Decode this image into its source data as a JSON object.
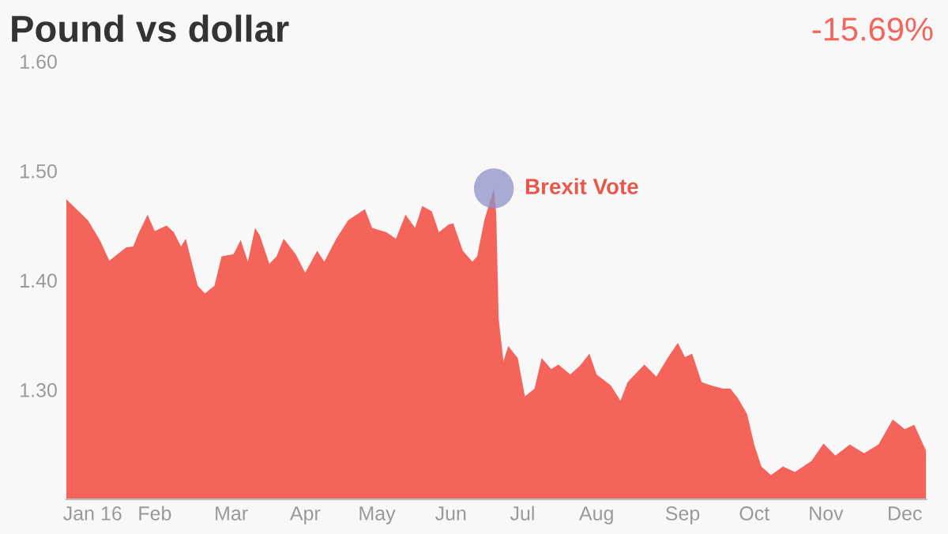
{
  "chart_data": {
    "type": "area",
    "title": "Pound vs dollar",
    "annotations": [
      "-15.69%",
      {
        "text": "Brexit Vote",
        "x": "2016-06-28",
        "y": 1.484
      }
    ],
    "x": [
      "2016-01-01",
      "2016-01-10",
      "2016-01-15",
      "2016-01-19",
      "2016-01-26",
      "2016-01-29",
      "2016-01-31",
      "2016-02-04",
      "2016-02-07",
      "2016-02-12",
      "2016-02-15",
      "2016-02-18",
      "2016-02-20",
      "2016-02-25",
      "2016-02-28",
      "2016-03-03",
      "2016-03-06",
      "2016-03-11",
      "2016-03-14",
      "2016-03-17",
      "2016-03-20",
      "2016-03-22",
      "2016-03-26",
      "2016-03-29",
      "2016-04-01",
      "2016-04-06",
      "2016-04-10",
      "2016-04-15",
      "2016-04-18",
      "2016-04-23",
      "2016-04-28",
      "2016-05-05",
      "2016-05-08",
      "2016-05-14",
      "2016-05-18",
      "2016-05-22",
      "2016-05-26",
      "2016-05-29",
      "2016-06-02",
      "2016-06-05",
      "2016-06-09",
      "2016-06-11",
      "2016-06-15",
      "2016-06-19",
      "2016-06-21",
      "2016-06-24",
      "2016-06-28",
      "2016-06-29",
      "2016-06-30",
      "2016-07-02",
      "2016-07-04",
      "2016-07-08",
      "2016-07-11",
      "2016-07-15",
      "2016-07-18",
      "2016-07-22",
      "2016-07-25",
      "2016-07-30",
      "2016-08-03",
      "2016-08-07",
      "2016-08-10",
      "2016-08-16",
      "2016-08-20",
      "2016-08-23",
      "2016-08-30",
      "2016-09-04",
      "2016-09-09",
      "2016-09-13",
      "2016-09-16",
      "2016-09-19",
      "2016-09-23",
      "2016-09-27",
      "2016-10-02",
      "2016-10-05",
      "2016-10-08",
      "2016-10-12",
      "2016-10-15",
      "2016-10-18",
      "2016-10-22",
      "2016-10-27",
      "2016-11-01",
      "2016-11-08",
      "2016-11-13",
      "2016-11-18",
      "2016-11-24",
      "2016-11-30",
      "2016-12-06",
      "2016-12-12",
      "2016-12-17",
      "2016-12-21",
      "2016-12-26"
    ],
    "series": [
      {
        "color": "#f4645a",
        "values": [
          1.474,
          1.455,
          1.437,
          1.418,
          1.43,
          1.431,
          1.442,
          1.46,
          1.445,
          1.45,
          1.444,
          1.431,
          1.438,
          1.395,
          1.388,
          1.395,
          1.422,
          1.424,
          1.437,
          1.417,
          1.448,
          1.441,
          1.415,
          1.422,
          1.438,
          1.424,
          1.407,
          1.427,
          1.417,
          1.438,
          1.455,
          1.465,
          1.448,
          1.444,
          1.438,
          1.46,
          1.448,
          1.468,
          1.463,
          1.444,
          1.451,
          1.452,
          1.427,
          1.417,
          1.422,
          1.455,
          1.484,
          1.46,
          1.365,
          1.326,
          1.34,
          1.329,
          1.294,
          1.301,
          1.329,
          1.319,
          1.323,
          1.314,
          1.322,
          1.333,
          1.314,
          1.304,
          1.29,
          1.307,
          1.323,
          1.312,
          1.33,
          1.343,
          1.33,
          1.333,
          1.307,
          1.304,
          1.301,
          1.301,
          1.293,
          1.278,
          1.25,
          1.23,
          1.222,
          1.23,
          1.225,
          1.235,
          1.251,
          1.24,
          1.25,
          1.242,
          1.25,
          1.273,
          1.264,
          1.268,
          1.244
        ]
      }
    ],
    "xlim": [
      "2016-01-01",
      "2016-12-26"
    ],
    "xticks": [
      {
        "value": "2016-01-12",
        "label": "Jan 16"
      },
      {
        "value": "2016-02-07",
        "label": "Feb"
      },
      {
        "value": "2016-03-10",
        "label": "Mar"
      },
      {
        "value": "2016-04-10",
        "label": "Apr"
      },
      {
        "value": "2016-05-10",
        "label": "May"
      },
      {
        "value": "2016-06-10",
        "label": "Jun"
      },
      {
        "value": "2016-07-10",
        "label": "Jul"
      },
      {
        "value": "2016-08-10",
        "label": "Aug"
      },
      {
        "value": "2016-09-15",
        "label": "Sep"
      },
      {
        "value": "2016-10-15",
        "label": "Oct"
      },
      {
        "value": "2016-11-14",
        "label": "Nov"
      },
      {
        "value": "2016-12-17",
        "label": "Dec"
      }
    ],
    "ylim": [
      1.2,
      1.6
    ],
    "yticks": [
      {
        "value": 1.3,
        "label": "1.30"
      },
      {
        "value": 1.4,
        "label": "1.40"
      },
      {
        "value": 1.5,
        "label": "1.50"
      },
      {
        "value": 1.6,
        "label": "1.60"
      }
    ],
    "grid": false
  }
}
